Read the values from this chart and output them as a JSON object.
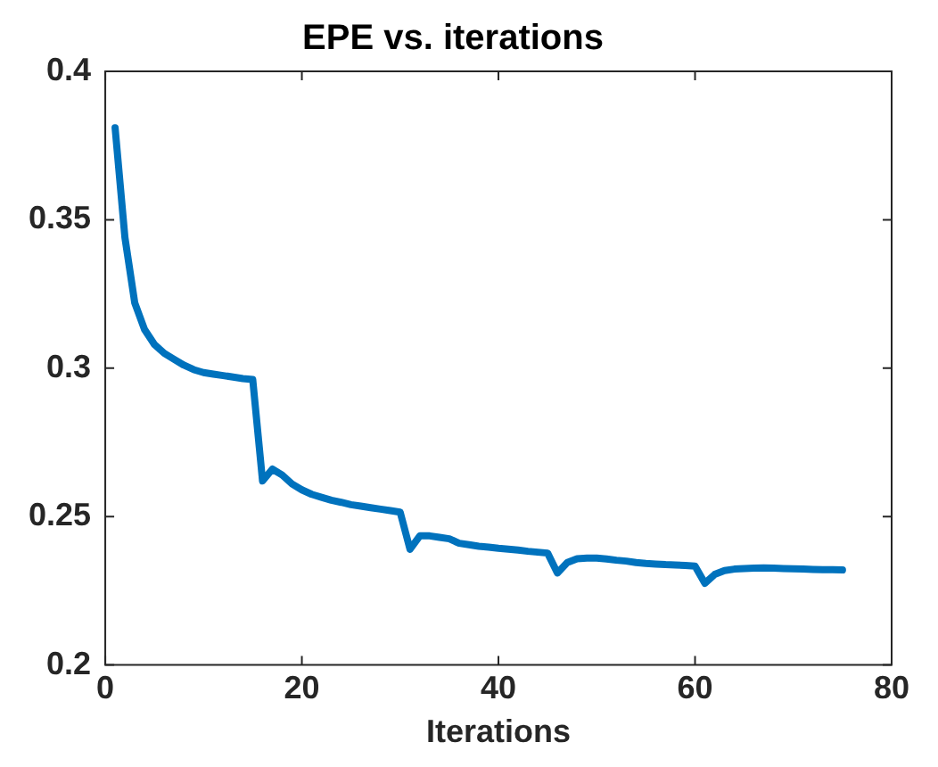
{
  "chart_data": {
    "type": "line",
    "title": "EPE vs. iterations",
    "xlabel": "Iterations",
    "x": [
      1,
      2,
      3,
      4,
      5,
      6,
      7,
      8,
      9,
      10,
      11,
      12,
      13,
      14,
      15,
      16,
      17,
      18,
      19,
      20,
      21,
      22,
      23,
      24,
      25,
      26,
      27,
      28,
      29,
      30,
      31,
      32,
      33,
      34,
      35,
      36,
      37,
      38,
      39,
      40,
      41,
      42,
      43,
      44,
      45,
      46,
      47,
      48,
      49,
      50,
      51,
      52,
      53,
      54,
      55,
      56,
      57,
      58,
      59,
      60,
      61,
      62,
      63,
      64,
      65,
      66,
      67,
      68,
      69,
      70,
      71,
      72,
      73,
      74,
      75
    ],
    "series": [
      {
        "color": "#0072bd",
        "values": [
          0.381,
          0.344,
          0.322,
          0.313,
          0.308,
          0.305,
          0.303,
          0.301,
          0.2995,
          0.2985,
          0.298,
          0.2975,
          0.297,
          0.2965,
          0.2962,
          0.262,
          0.266,
          0.264,
          0.261,
          0.259,
          0.2575,
          0.2565,
          0.2555,
          0.2548,
          0.254,
          0.2535,
          0.253,
          0.2525,
          0.252,
          0.2515,
          0.239,
          0.2435,
          0.2435,
          0.243,
          0.2425,
          0.241,
          0.2405,
          0.24,
          0.2397,
          0.2393,
          0.239,
          0.2387,
          0.2383,
          0.238,
          0.2377,
          0.231,
          0.2345,
          0.2358,
          0.236,
          0.236,
          0.2357,
          0.2353,
          0.235,
          0.2345,
          0.2342,
          0.234,
          0.2338,
          0.2337,
          0.2335,
          0.2333,
          0.2275,
          0.2305,
          0.2318,
          0.2323,
          0.2325,
          0.2326,
          0.2327,
          0.2326,
          0.2325,
          0.2324,
          0.2323,
          0.2322,
          0.2321,
          0.2321,
          0.232
        ]
      }
    ],
    "xlim": [
      0,
      80
    ],
    "xticks": [
      0,
      20,
      40,
      60,
      80
    ],
    "ylim": [
      0.2,
      0.4
    ],
    "yticks": [
      0.2,
      0.25,
      0.3,
      0.35,
      0.4
    ],
    "grid": false,
    "legend": false,
    "marker": "none",
    "line_style": "solid"
  }
}
